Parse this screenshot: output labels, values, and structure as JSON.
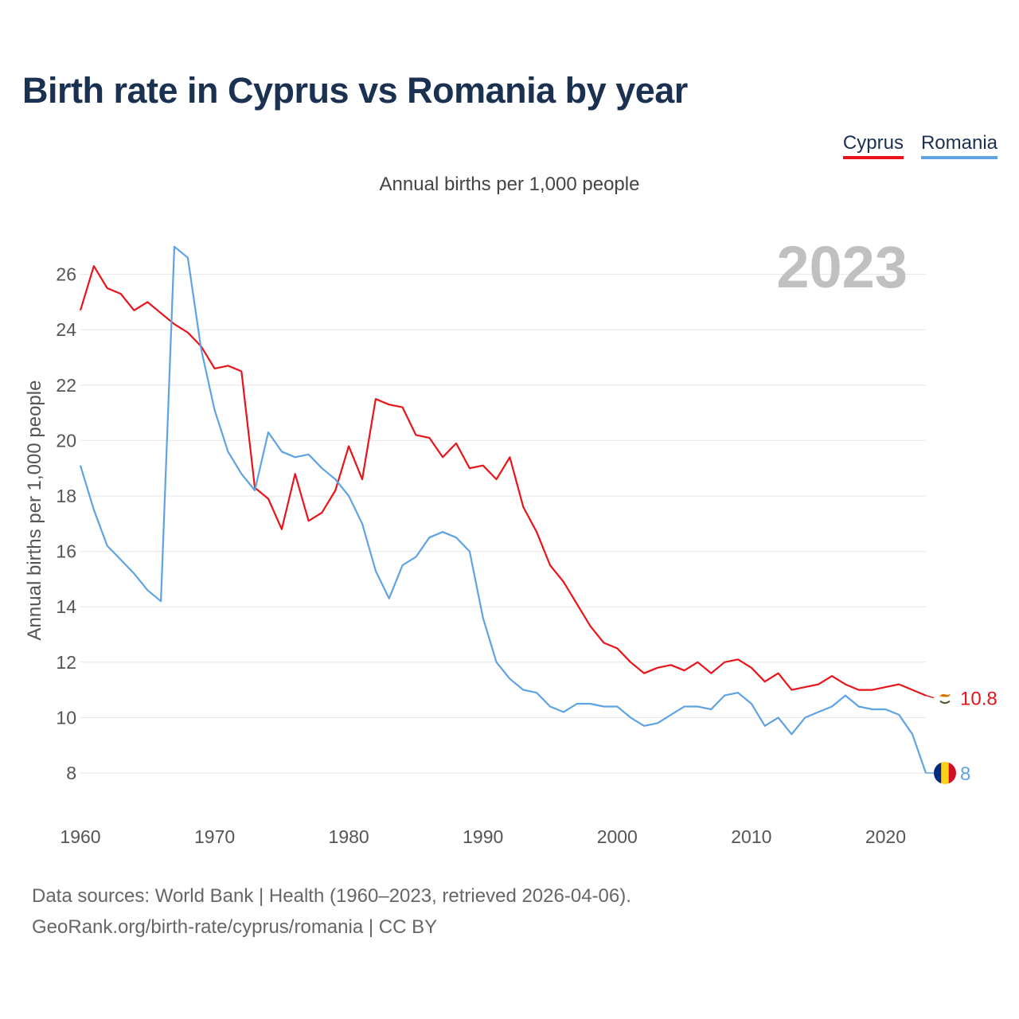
{
  "title": "Birth rate in Cyprus vs Romania by year",
  "subtitle": "Annual births per 1,000 people",
  "source_line1": "Data sources: World Bank | Health (1960–2023, retrieved 2026-04-06).",
  "source_line2": "GeoRank.org/birth-rate/cyprus/romania | CC BY",
  "legend": [
    {
      "name": "Cyprus",
      "color": "#e8141a"
    },
    {
      "name": "Romania",
      "color": "#5fa3e2"
    }
  ],
  "chart_data": {
    "type": "line",
    "title": "Birth rate in Cyprus vs Romania by year",
    "ylabel": "Annual births per 1,000 people",
    "xlabel": "",
    "year_label": "2023",
    "xlim": [
      1960,
      2023
    ],
    "ylim": [
      7,
      27
    ],
    "x_ticks": [
      1960,
      1970,
      1980,
      1990,
      2000,
      2010,
      2020
    ],
    "y_ticks": [
      8,
      10,
      12,
      14,
      16,
      18,
      20,
      22,
      24,
      26
    ],
    "grid": true,
    "legend_position": "top-right",
    "x": [
      1960,
      1961,
      1962,
      1963,
      1964,
      1965,
      1966,
      1967,
      1968,
      1969,
      1970,
      1971,
      1972,
      1973,
      1974,
      1975,
      1976,
      1977,
      1978,
      1979,
      1980,
      1981,
      1982,
      1983,
      1984,
      1985,
      1986,
      1987,
      1988,
      1989,
      1990,
      1991,
      1992,
      1993,
      1994,
      1995,
      1996,
      1997,
      1998,
      1999,
      2000,
      2001,
      2002,
      2003,
      2004,
      2005,
      2006,
      2007,
      2008,
      2009,
      2010,
      2011,
      2012,
      2013,
      2014,
      2015,
      2016,
      2017,
      2018,
      2019,
      2020,
      2021,
      2022,
      2023
    ],
    "series": [
      {
        "name": "Cyprus",
        "color": "#e8141a",
        "end_label": "10.8",
        "values": [
          24.7,
          26.3,
          25.5,
          25.3,
          24.7,
          25.0,
          24.6,
          24.2,
          23.9,
          23.4,
          22.6,
          22.7,
          22.5,
          18.3,
          17.9,
          16.8,
          18.8,
          17.1,
          17.4,
          18.2,
          19.8,
          18.6,
          21.5,
          21.3,
          21.2,
          20.2,
          20.1,
          19.4,
          19.9,
          19.0,
          19.1,
          18.6,
          19.4,
          17.6,
          16.7,
          15.5,
          14.9,
          14.1,
          13.3,
          12.7,
          12.5,
          12.0,
          11.6,
          11.8,
          11.9,
          11.7,
          12.0,
          11.6,
          12.0,
          12.1,
          11.8,
          11.3,
          11.6,
          11.0,
          11.1,
          11.2,
          11.5,
          11.2,
          11.0,
          11.0,
          11.1,
          11.2,
          11.0,
          10.8
        ]
      },
      {
        "name": "Romania",
        "color": "#5fa3e2",
        "end_label": "8",
        "values": [
          19.1,
          17.5,
          16.2,
          15.7,
          15.2,
          14.6,
          14.2,
          27.0,
          26.6,
          23.3,
          21.1,
          19.6,
          18.8,
          18.2,
          20.3,
          19.6,
          19.4,
          19.5,
          19.0,
          18.6,
          18.0,
          17.0,
          15.3,
          14.3,
          15.5,
          15.8,
          16.5,
          16.7,
          16.5,
          16.0,
          13.6,
          12.0,
          11.4,
          11.0,
          10.9,
          10.4,
          10.2,
          10.5,
          10.5,
          10.4,
          10.4,
          10.0,
          9.7,
          9.8,
          10.1,
          10.4,
          10.4,
          10.3,
          10.8,
          10.9,
          10.5,
          9.7,
          10.0,
          9.4,
          10.0,
          10.2,
          10.4,
          10.8,
          10.4,
          10.3,
          10.3,
          10.1,
          9.4,
          8.0
        ]
      }
    ]
  }
}
